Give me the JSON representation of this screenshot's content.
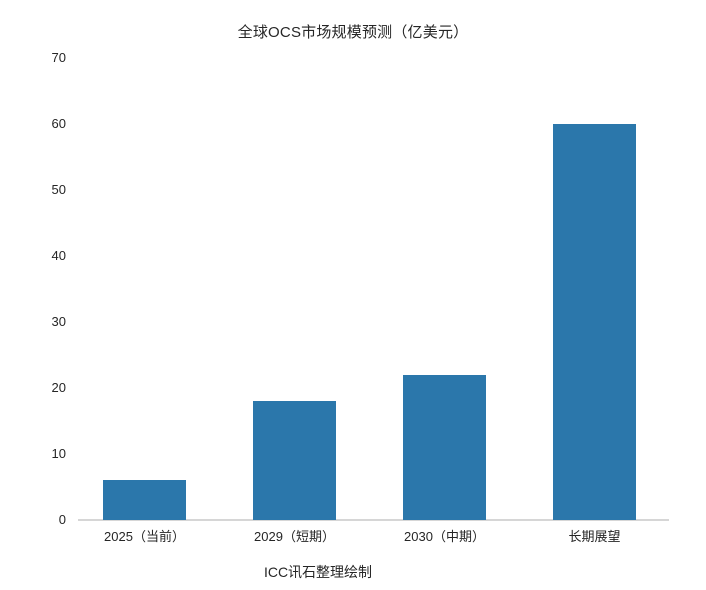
{
  "chart_data": {
    "type": "bar",
    "title": "全球OCS市场规模预测（亿美元）",
    "footer": "ICC讯石整理绘制",
    "categories": [
      "2025（当前）",
      "2029（短期）",
      "2030（中期）",
      "长期展望"
    ],
    "values": [
      6,
      18,
      22,
      60
    ],
    "xlabel": "",
    "ylabel": "",
    "ylim": [
      0,
      70
    ],
    "yticks": [
      0,
      10,
      20,
      30,
      40,
      50,
      60,
      70
    ],
    "grid": false,
    "legend_position": "none",
    "bar_color": "#2b77ab",
    "axis_line_color": "#d6d6d6",
    "text_color": "#262626"
  }
}
